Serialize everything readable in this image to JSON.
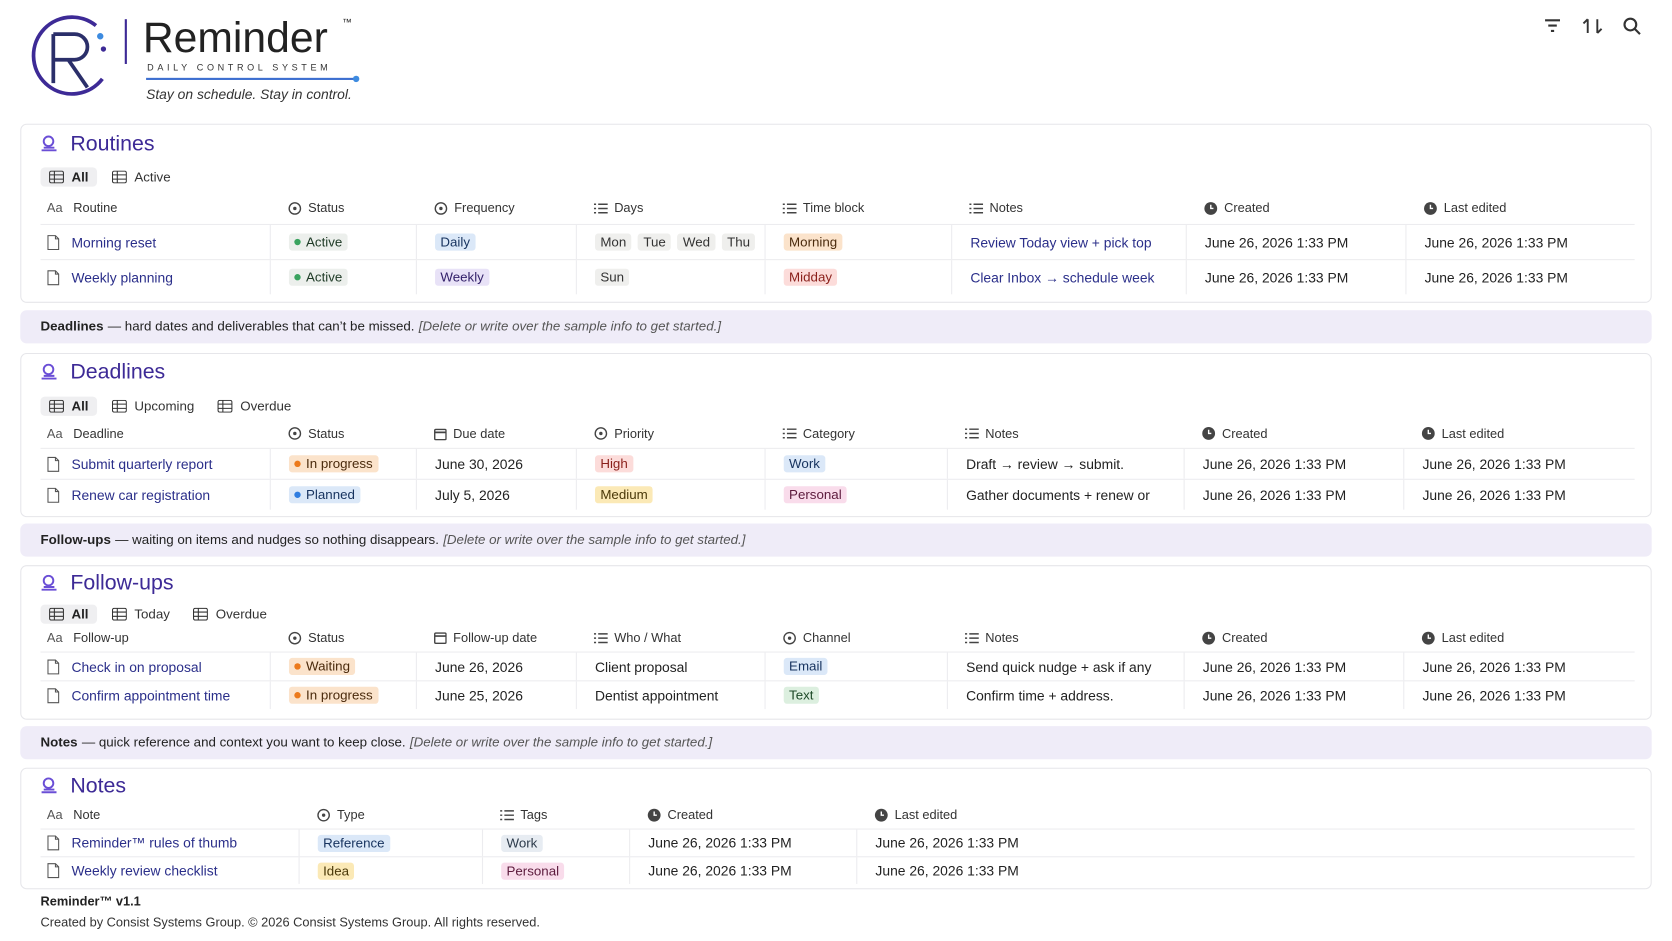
{
  "header": {
    "brand": "Reminder",
    "tm": "™",
    "subtitle": "DAILY CONTROL SYSTEM",
    "tagline": "Stay on schedule. Stay in control."
  },
  "name_icon": "Aa",
  "sections": [
    {
      "title": "Routines",
      "views": [
        "All",
        "Active"
      ],
      "columns": [
        "Routine",
        "Status",
        "Frequency",
        "Days",
        "Time block",
        "Notes",
        "Created",
        "Last edited"
      ],
      "rows": [
        [
          "Morning reset",
          "Active",
          "Daily",
          [
            "Mon",
            "Tue",
            "Wed",
            "Thu"
          ],
          "Morning",
          "Review Today view + pick top",
          "June 26, 2026 1:33 PM",
          "June 26, 2026 1:33 PM"
        ],
        [
          "Weekly planning",
          "Active",
          "Weekly",
          [
            "Sun"
          ],
          "Midday",
          "Clear Inbox → schedule week",
          "June 26, 2026 1:33 PM",
          "June 26, 2026 1:33 PM"
        ]
      ]
    },
    {
      "title": "Deadlines",
      "views": [
        "All",
        "Upcoming",
        "Overdue"
      ],
      "columns": [
        "Deadline",
        "Status",
        "Due date",
        "Priority",
        "Category",
        "Notes",
        "Created",
        "Last edited"
      ],
      "rows": [
        [
          "Submit quarterly report",
          "In progress",
          "June 30, 2026",
          "High",
          "Work",
          "Draft → review → submit.",
          "June 26, 2026 1:33 PM",
          "June 26, 2026 1:33 PM"
        ],
        [
          "Renew car registration",
          "Planned",
          "July 5, 2026",
          "Medium",
          "Personal",
          "Gather documents + renew or",
          "June 26, 2026 1:33 PM",
          "June 26, 2026 1:33 PM"
        ]
      ]
    },
    {
      "title": "Follow-ups",
      "views": [
        "All",
        "Today",
        "Overdue"
      ],
      "columns": [
        "Follow-up",
        "Status",
        "Follow-up date",
        "Who / What",
        "Channel",
        "Notes",
        "Created",
        "Last edited"
      ],
      "rows": [
        [
          "Check in on proposal",
          "Waiting",
          "June 26, 2026",
          "Client proposal",
          "Email",
          "Send quick nudge + ask if any",
          "June 26, 2026 1:33 PM",
          "June 26, 2026 1:33 PM"
        ],
        [
          "Confirm appointment time",
          "In progress",
          "June 25, 2026",
          "Dentist appointment",
          "Text",
          "Confirm time + address.",
          "June 26, 2026 1:33 PM",
          "June 26, 2026 1:33 PM"
        ]
      ]
    },
    {
      "title": "Notes",
      "views": [],
      "columns": [
        "Note",
        "Type",
        "Tags",
        "Created",
        "Last edited"
      ],
      "rows": [
        [
          "Reminder™ rules of thumb",
          "Reference",
          "Work",
          "June 26, 2026 1:33 PM",
          "June 26, 2026 1:33 PM"
        ],
        [
          "Weekly review checklist",
          "Idea",
          "Personal",
          "June 26, 2026 1:33 PM",
          "June 26, 2026 1:33 PM"
        ]
      ]
    }
  ],
  "banners": [
    {
      "label": "Deadlines",
      "text": "— hard dates and deliverables that can’t be missed.",
      "hint": "[Delete or write over the sample info to get started.]"
    },
    {
      "label": "Follow-ups",
      "text": "— waiting on items and nudges so nothing disappears.",
      "hint": "[Delete or write over the sample info to get started.]"
    },
    {
      "label": "Notes",
      "text": "— quick reference and context you want to keep close.",
      "hint": "[Delete or write over the sample info to get started.]"
    }
  ],
  "footer": {
    "version": "Reminder™ v1.1",
    "rights": "Created by Consist Systems Group. © 2026 Consist Systems Group. All rights reserved."
  }
}
